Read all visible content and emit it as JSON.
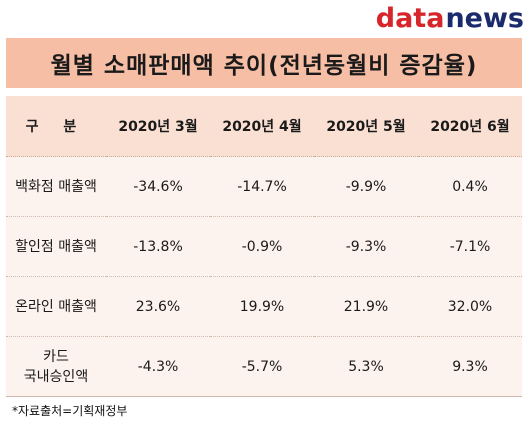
{
  "logo": {
    "part_red": "data",
    "part_blue": "news",
    "color_red": "#d7262b",
    "color_blue": "#1b2a6b"
  },
  "title": "월별 소매판매액 추이(전년동월비 증감율)",
  "colors": {
    "title_bg": "#f6bea5",
    "header_bg": "#fae0d3",
    "row_bg": "#fdf3ee"
  },
  "chart_data": {
    "type": "table",
    "title": "월별 소매판매액 추이(전년동월비 증감율)",
    "columns": [
      "구 분",
      "2020년 3월",
      "2020년 4월",
      "2020년 5월",
      "2020년 6월"
    ],
    "rows": [
      {
        "label": "백화점 매출액",
        "label_lines": [
          "백화점 매출액"
        ],
        "values": [
          "-34.6%",
          "-14.7%",
          "-9.9%",
          "0.4%"
        ]
      },
      {
        "label": "할인점 매출액",
        "label_lines": [
          "할인점 매출액"
        ],
        "values": [
          "-13.8%",
          "-0.9%",
          "-9.3%",
          "-7.1%"
        ]
      },
      {
        "label": "온라인 매출액",
        "label_lines": [
          "온라인 매출액"
        ],
        "values": [
          "23.6%",
          "19.9%",
          "21.9%",
          "32.0%"
        ]
      },
      {
        "label": "카드 국내승인액",
        "label_lines": [
          "카드",
          "국내승인액"
        ],
        "values": [
          "-4.3%",
          "-5.7%",
          "5.3%",
          "9.3%"
        ]
      }
    ]
  },
  "footnote": "*자료출처=기획재정부"
}
